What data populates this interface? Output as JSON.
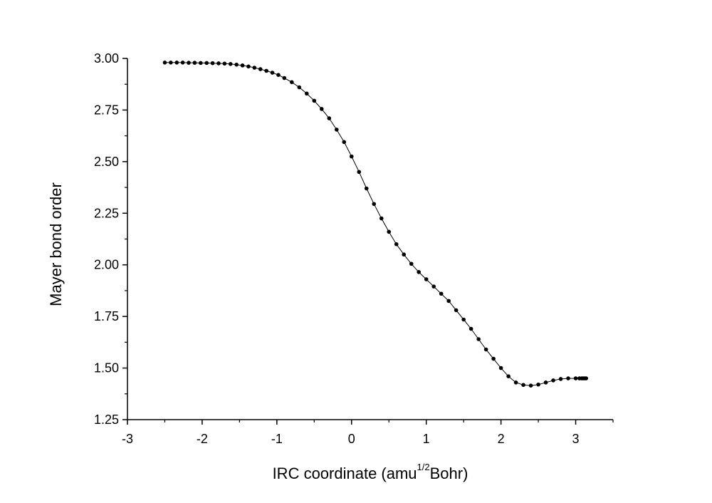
{
  "chart_data": {
    "type": "line",
    "xlabel_main": "IRC coordinate (amu",
    "xlabel_sup": "1/2",
    "xlabel_tail": "Bohr)",
    "ylabel": "Mayer bond order",
    "xlim": [
      -3,
      3.5
    ],
    "ylim": [
      1.25,
      3.0
    ],
    "x_ticks": [
      -3,
      -2,
      -1,
      0,
      1,
      2,
      3
    ],
    "x_tick_labels": [
      "-3",
      "-2",
      "-1",
      "0",
      "1",
      "2",
      "3"
    ],
    "y_ticks": [
      1.25,
      1.5,
      1.75,
      2.0,
      2.25,
      2.5,
      2.75,
      3.0
    ],
    "y_tick_labels": [
      "1.25",
      "1.50",
      "1.75",
      "2.00",
      "2.25",
      "2.50",
      "2.75",
      "3.00"
    ],
    "grid": false,
    "series_color": "#000000",
    "series": [
      {
        "x": [
          -2.5,
          -2.42,
          -2.34,
          -2.26,
          -2.18,
          -2.1,
          -2.02,
          -1.94,
          -1.86,
          -1.78,
          -1.7,
          -1.62,
          -1.54,
          -1.46,
          -1.38,
          -1.3,
          -1.22,
          -1.14,
          -1.06,
          -0.98,
          -0.9,
          -0.8,
          -0.7,
          -0.6,
          -0.5,
          -0.4,
          -0.3,
          -0.2,
          -0.1,
          0.0,
          0.1,
          0.2,
          0.3,
          0.4,
          0.5,
          0.6,
          0.7,
          0.8,
          0.9,
          1.0,
          1.1,
          1.2,
          1.3,
          1.4,
          1.5,
          1.6,
          1.7,
          1.8,
          1.9,
          2.0,
          2.1,
          2.2,
          2.3,
          2.4,
          2.5,
          2.6,
          2.7,
          2.8,
          2.9,
          3.0,
          3.05,
          3.08,
          3.1,
          3.12,
          3.14
        ],
        "y": [
          2.98,
          2.98,
          2.98,
          2.98,
          2.979,
          2.979,
          2.978,
          2.978,
          2.977,
          2.976,
          2.975,
          2.973,
          2.97,
          2.966,
          2.961,
          2.955,
          2.948,
          2.94,
          2.931,
          2.92,
          2.905,
          2.885,
          2.86,
          2.83,
          2.795,
          2.755,
          2.71,
          2.655,
          2.595,
          2.525,
          2.45,
          2.37,
          2.295,
          2.225,
          2.16,
          2.1,
          2.05,
          2.005,
          1.965,
          1.93,
          1.895,
          1.86,
          1.825,
          1.78,
          1.735,
          1.69,
          1.64,
          1.59,
          1.545,
          1.5,
          1.46,
          1.43,
          1.418,
          1.415,
          1.42,
          1.43,
          1.44,
          1.447,
          1.45,
          1.45,
          1.45,
          1.45,
          1.45,
          1.45,
          1.45
        ]
      }
    ]
  }
}
